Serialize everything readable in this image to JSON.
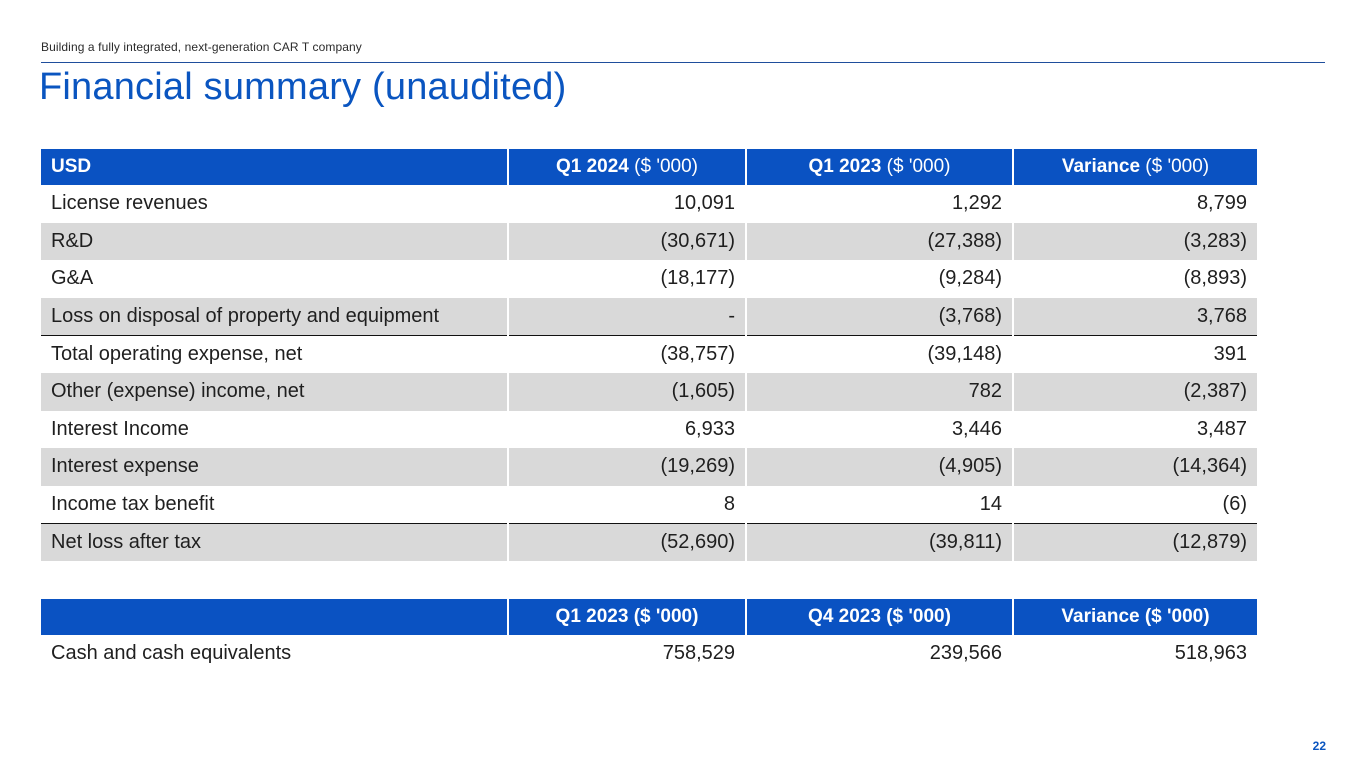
{
  "header": {
    "caption": "Building a fully integrated, next-generation CAR T company",
    "title": "Financial summary (unaudited)"
  },
  "financial_table": {
    "columns": [
      {
        "label": "USD",
        "unit": ""
      },
      {
        "label": "Q1 2024",
        "unit": " ($ '000)"
      },
      {
        "label": "Q1 2023",
        "unit": " ($ '000)"
      },
      {
        "label": "Variance",
        "unit": " ($ '000)"
      }
    ],
    "rows": [
      {
        "label": "License revenues",
        "q1_2024": "10,091",
        "q1_2023": "1,292",
        "variance": "8,799"
      },
      {
        "label": "R&D",
        "q1_2024": "(30,671)",
        "q1_2023": "(27,388)",
        "variance": "(3,283)"
      },
      {
        "label": "G&A",
        "q1_2024": "(18,177)",
        "q1_2023": "(9,284)",
        "variance": "(8,893)"
      },
      {
        "label": "Loss on disposal of property and equipment",
        "q1_2024": "-",
        "q1_2023": "(3,768)",
        "variance": "3,768"
      },
      {
        "label": "Total operating expense, net",
        "q1_2024": "(38,757)",
        "q1_2023": "(39,148)",
        "variance": "391"
      },
      {
        "label": "Other (expense) income, net",
        "q1_2024": "(1,605)",
        "q1_2023": "782",
        "variance": "(2,387)"
      },
      {
        "label": "Interest Income",
        "q1_2024": "6,933",
        "q1_2023": "3,446",
        "variance": "3,487"
      },
      {
        "label": "Interest expense",
        "q1_2024": "(19,269)",
        "q1_2023": "(4,905)",
        "variance": "(14,364)"
      },
      {
        "label": "Income tax benefit",
        "q1_2024": "8",
        "q1_2023": "14",
        "variance": "(6)"
      },
      {
        "label": "Net loss after tax",
        "q1_2024": "(52,690)",
        "q1_2023": "(39,811)",
        "variance": "(12,879)"
      }
    ]
  },
  "cash_table": {
    "columns": [
      {
        "label": ""
      },
      {
        "label": "Q1 2023 ($ '000)"
      },
      {
        "label": "Q4 2023 ($ '000)"
      },
      {
        "label": "Variance ($ '000)"
      }
    ],
    "rows": [
      {
        "label": "Cash and cash equivalents",
        "q1_2023": "758,529",
        "q4_2023": "239,566",
        "variance": "518,963"
      }
    ]
  },
  "footer": {
    "page_number": "22"
  },
  "colors": {
    "accent": "#0a55c0",
    "header_fill": "#0a52c2",
    "row_shade": "#d9d9d9"
  }
}
